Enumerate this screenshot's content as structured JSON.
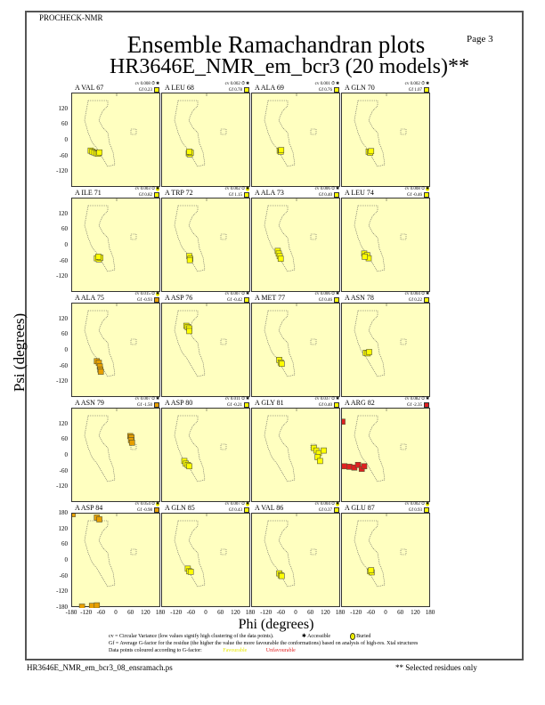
{
  "header": {
    "program": "PROCHECK-NMR",
    "page": "Page  3",
    "title": "Ensemble Ramachandran plots",
    "subtitle": "HR3646E_NMR_em_bcr3 (20 models)**"
  },
  "legend": {
    "cv_text": "cv = Circular Variance (low values signify high clustering of the data points).",
    "accessible": "Accessible",
    "buried": "Buried",
    "gf_text": "Gf = Average G-factor for the residue (the higher the value the more favourable the conformations) based on analysis of high-res. Xtal structures",
    "colour_text": "Data points coloured according to G-factor:",
    "favourable": "Favourable",
    "unfavourable": "Unfavourable"
  },
  "footer": {
    "file": "HR3646E_NMR_em_bcr3_08_ensramach.ps",
    "note": "** Selected residues only"
  },
  "colors": {
    "favourable": "#ffff00",
    "mid": "#e8a000",
    "unfavourable": "#e02020",
    "panel_bg": "#ffffc0"
  },
  "chart_data": {
    "type": "scatter",
    "xlabel": "Phi (degrees)",
    "ylabel": "Psi (degrees)",
    "xlim": [
      -180,
      180
    ],
    "ylim": [
      -180,
      180
    ],
    "xticks": [
      "-180",
      "-120",
      "-60",
      "0",
      "60",
      "120",
      "180"
    ],
    "yticks": [
      "120",
      "60",
      "0",
      "-60",
      "-120"
    ],
    "yticks_last": [
      "180",
      "120",
      "60",
      "0",
      "-60",
      "-120",
      "-180"
    ],
    "panels": [
      {
        "label": "A VAL 67",
        "cv": "cv 0.008",
        "gf": "Gf 0.23",
        "exposure": "accessible",
        "gcolor": "#ffff00",
        "points": [
          [
            -105,
            -38
          ],
          [
            -98,
            -42
          ],
          [
            -90,
            -45
          ],
          [
            -82,
            -48
          ],
          [
            -75,
            -50
          ],
          [
            -70,
            -45
          ]
        ]
      },
      {
        "label": "A LEU 68",
        "cv": "cv 0.002",
        "gf": "Gf 0.78",
        "exposure": "accessible",
        "gcolor": "#ffff00",
        "points": [
          [
            -72,
            -48
          ],
          [
            -68,
            -52
          ],
          [
            -64,
            -46
          ],
          [
            -70,
            -42
          ]
        ]
      },
      {
        "label": "A ALA 69",
        "cv": "cv 0.001",
        "gf": "Gf 0.76",
        "exposure": "accessible",
        "gcolor": "#ffff00",
        "points": [
          [
            -68,
            -38
          ],
          [
            -64,
            -42
          ],
          [
            -62,
            -36
          ]
        ]
      },
      {
        "label": "A GLN 70",
        "cv": "cv 0.002",
        "gf": "Gf 1.07",
        "exposure": "accessible",
        "gcolor": "#ffff00",
        "points": [
          [
            -72,
            -42
          ],
          [
            -66,
            -46
          ],
          [
            -62,
            -40
          ]
        ]
      },
      {
        "label": "A ILE 71",
        "cv": "cv 0.003",
        "gf": "Gf 0.82",
        "exposure": "buried",
        "gcolor": "#ffff00",
        "points": [
          [
            -80,
            -48
          ],
          [
            -72,
            -52
          ],
          [
            -66,
            -46
          ],
          [
            -74,
            -42
          ]
        ]
      },
      {
        "label": "A TRP 72",
        "cv": "cv 0.002",
        "gf": "Gf 1.15",
        "exposure": "buried",
        "gcolor": "#ffff00",
        "points": [
          [
            -70,
            -40
          ],
          [
            -66,
            -50
          ],
          [
            -68,
            -55
          ]
        ]
      },
      {
        "label": "A ALA 73",
        "cv": "cv 0.006",
        "gf": "Gf 0.40",
        "exposure": "accessible",
        "gcolor": "#ffff00",
        "points": [
          [
            -76,
            -20
          ],
          [
            -72,
            -30
          ],
          [
            -68,
            -40
          ],
          [
            -64,
            -50
          ]
        ]
      },
      {
        "label": "A LEU 74",
        "cv": "cv 0.008",
        "gf": "Gf -0.46",
        "exposure": "buried",
        "gcolor": "#ffff00",
        "points": [
          [
            -90,
            -30
          ],
          [
            -84,
            -40
          ],
          [
            -78,
            -36
          ],
          [
            -72,
            -48
          ],
          [
            -88,
            -42
          ]
        ]
      },
      {
        "label": "A ALA 75",
        "cv": "cv 0.015",
        "gf": "Gf -0.93",
        "exposure": "buried",
        "gcolor": "#e8a000",
        "points": [
          [
            -80,
            -40
          ],
          [
            -72,
            -46
          ],
          [
            -68,
            -60
          ],
          [
            -66,
            -72
          ],
          [
            -64,
            -80
          ]
        ]
      },
      {
        "label": "A ASP 76",
        "cv": "cv 0.007",
        "gf": "Gf -0.42",
        "exposure": "accessible",
        "gcolor": "#ffff00",
        "points": [
          [
            -82,
            95
          ],
          [
            -76,
            90
          ],
          [
            -70,
            85
          ],
          [
            -70,
            75
          ]
        ]
      },
      {
        "label": "A MET 77",
        "cv": "cv 0.006",
        "gf": "Gf 0.46",
        "exposure": "accessible",
        "gcolor": "#ffff00",
        "points": [
          [
            -70,
            -35
          ],
          [
            -64,
            -45
          ],
          [
            -60,
            -50
          ]
        ]
      },
      {
        "label": "A ASN 78",
        "cv": "cv 0.004",
        "gf": "Gf 0.22",
        "exposure": "accessible",
        "gcolor": "#ffff00",
        "points": [
          [
            -84,
            -8
          ],
          [
            -76,
            -10
          ],
          [
            -70,
            -5
          ]
        ]
      },
      {
        "label": "A ASN 79",
        "cv": "cv 0.007",
        "gf": "Gf -1.50",
        "exposure": "accessible",
        "gcolor": "#e8a000",
        "points": [
          [
            55,
            75
          ],
          [
            60,
            70
          ],
          [
            58,
            60
          ],
          [
            62,
            50
          ]
        ]
      },
      {
        "label": "A ASP 80",
        "cv": "cv 0.011",
        "gf": "Gf -0.21",
        "exposure": "accessible",
        "gcolor": "#ffff00",
        "points": [
          [
            -90,
            -20
          ],
          [
            -84,
            -30
          ],
          [
            -76,
            -35
          ],
          [
            -70,
            -40
          ]
        ]
      },
      {
        "label": "A GLY 81",
        "cv": "cv 0.037",
        "gf": "Gf 0.40",
        "exposure": "accessible",
        "gcolor": "#ffff00",
        "points": [
          [
            70,
            30
          ],
          [
            80,
            20
          ],
          [
            90,
            10
          ],
          [
            85,
            -5
          ],
          [
            95,
            -20
          ],
          [
            110,
            20
          ]
        ]
      },
      {
        "label": "A ARG 82",
        "cv": "cv 0.082",
        "gf": "Gf -2.35",
        "exposure": "accessible",
        "gcolor": "#e02020",
        "points": [
          [
            -178,
            130
          ],
          [
            -170,
            -40
          ],
          [
            -150,
            -42
          ],
          [
            -130,
            -45
          ],
          [
            -115,
            -35
          ],
          [
            -100,
            -50
          ],
          [
            -90,
            -40
          ]
        ]
      },
      {
        "label": "A ASP 84",
        "cv": "cv 0.054",
        "gf": "Gf -0.98",
        "exposure": "buried",
        "gcolor": "#e8a000",
        "points": [
          [
            -178,
            178
          ],
          [
            -80,
            165
          ],
          [
            -70,
            158
          ],
          [
            -140,
            -175
          ],
          [
            -100,
            -172
          ],
          [
            -80,
            -170
          ]
        ]
      },
      {
        "label": "A GLN 85",
        "cv": "cv 0.007",
        "gf": "Gf 0.43",
        "exposure": "buried",
        "gcolor": "#ffff00",
        "points": [
          [
            -76,
            -30
          ],
          [
            -70,
            -40
          ],
          [
            -64,
            -42
          ]
        ]
      },
      {
        "label": "A VAL 86",
        "cv": "cv 0.004",
        "gf": "Gf 0.37",
        "exposure": "buried",
        "gcolor": "#ffff00",
        "points": [
          [
            -70,
            -48
          ],
          [
            -64,
            -55
          ],
          [
            -60,
            -58
          ]
        ]
      },
      {
        "label": "A GLU 87",
        "cv": "cv 0.002",
        "gf": "Gf 0.93",
        "exposure": "buried",
        "gcolor": "#ffff00",
        "points": [
          [
            -66,
            -40
          ],
          [
            -60,
            -44
          ],
          [
            -62,
            -36
          ]
        ]
      }
    ]
  }
}
